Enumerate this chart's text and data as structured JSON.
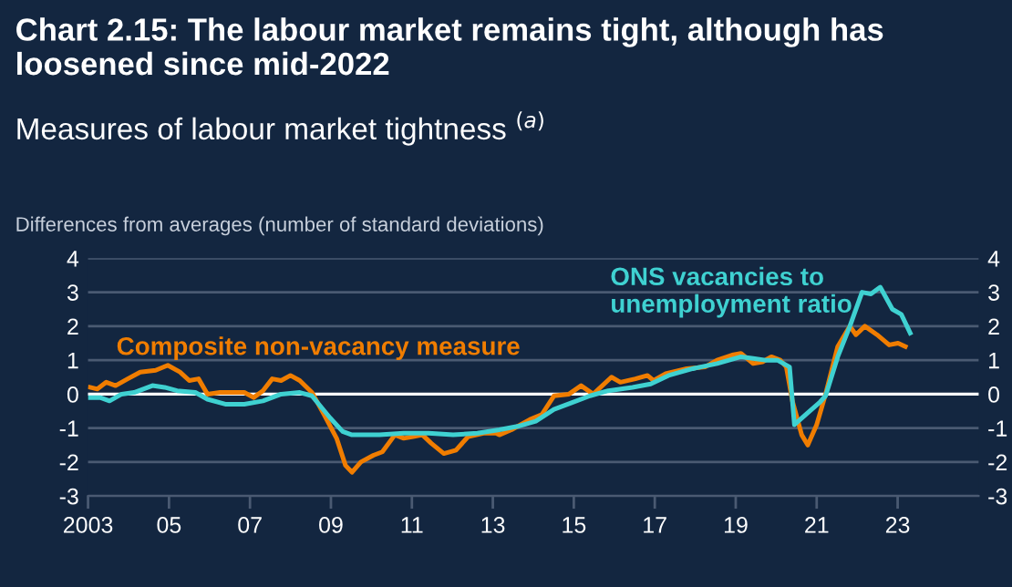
{
  "chart_data": {
    "type": "line",
    "title": "Chart 2.15: The labour market remains tight, although has loosened since mid-2022",
    "subtitle": "Measures of labour market tightness $^{(a)}$",
    "ylabel": "Differences from averages (number of standard deviations)",
    "xlim": [
      2003,
      2025
    ],
    "xticks": [
      2003,
      {
        "value": 2005,
        "label": "05"
      },
      {
        "value": 2007,
        "label": "07"
      },
      {
        "value": 2009,
        "label": "09"
      },
      {
        "value": 2011,
        "label": "11"
      },
      {
        "value": 2013,
        "label": "13"
      },
      {
        "value": 2015,
        "label": "15"
      },
      {
        "value": 2017,
        "label": "17"
      },
      {
        "value": 2019,
        "label": "19"
      },
      {
        "value": 2021,
        "label": "21"
      },
      {
        "value": 2023,
        "label": "23"
      }
    ],
    "ylim": [
      -3,
      4
    ],
    "yticks": [
      -3,
      -2,
      -1,
      0,
      1,
      2,
      3,
      4
    ],
    "y2lim": [
      -3,
      4
    ],
    "y2ticks": [
      -3,
      -2,
      -1,
      0,
      1,
      2,
      3,
      4
    ],
    "grid": "y",
    "legend": false,
    "ref_lines": [
      {
        "axis": "y",
        "value": 0,
        "color": "#ffffff"
      }
    ],
    "series": [
      {
        "name": "Composite non-vacancy measure",
        "color": "#f07d00",
        "x": [
          2003.05,
          2003.23,
          2003.45,
          2003.68,
          2003.98,
          2004.29,
          2004.67,
          2004.97,
          2005.27,
          2005.5,
          2005.73,
          2005.95,
          2006.26,
          2006.86,
          2007.09,
          2007.32,
          2007.55,
          2007.77,
          2008.0,
          2008.23,
          2008.53,
          2008.83,
          2009.14,
          2009.36,
          2009.52,
          2009.74,
          2010.05,
          2010.27,
          2010.58,
          2010.8,
          2011.03,
          2011.26,
          2011.48,
          2011.79,
          2012.09,
          2012.39,
          2012.77,
          2013.08,
          2013.16,
          2013.46,
          2013.91,
          2014.21,
          2014.51,
          2014.88,
          2015.18,
          2015.48,
          2015.93,
          2016.15,
          2016.52,
          2016.82,
          2016.97,
          2017.27,
          2017.79,
          2018.24,
          2018.54,
          2018.91,
          2019.13,
          2019.43,
          2019.66,
          2019.88,
          2020.1,
          2020.25,
          2020.4,
          2020.63,
          2020.78,
          2021.0,
          2021.22,
          2021.52,
          2021.82,
          2021.97,
          2022.19,
          2022.49,
          2022.79,
          2023.01,
          2023.19
        ],
        "values": [
          0.2,
          0.15,
          0.35,
          0.25,
          0.45,
          0.65,
          0.7,
          0.85,
          0.65,
          0.4,
          0.45,
          0.0,
          0.05,
          0.05,
          -0.1,
          0.1,
          0.45,
          0.4,
          0.55,
          0.4,
          0.05,
          -0.6,
          -1.3,
          -2.1,
          -2.3,
          -2.0,
          -1.8,
          -1.7,
          -1.2,
          -1.3,
          -1.25,
          -1.2,
          -1.45,
          -1.75,
          -1.65,
          -1.25,
          -1.15,
          -1.15,
          -1.2,
          -1.05,
          -0.75,
          -0.6,
          -0.05,
          0.0,
          0.25,
          0.0,
          0.5,
          0.35,
          0.45,
          0.55,
          0.4,
          0.6,
          0.75,
          0.8,
          1.0,
          1.15,
          1.2,
          0.9,
          0.95,
          1.1,
          1.0,
          0.8,
          -0.2,
          -1.2,
          -1.5,
          -0.9,
          0.0,
          1.4,
          2.0,
          1.75,
          2.0,
          1.75,
          1.45,
          1.5,
          1.4
        ]
      },
      {
        "name": "ONS vacancies to unemployment ratio",
        "color": "#3fd1d1",
        "x": [
          2003.05,
          2003.3,
          2003.53,
          2003.83,
          2004.14,
          2004.59,
          2004.89,
          2005.2,
          2005.65,
          2005.95,
          2006.41,
          2006.86,
          2007.32,
          2007.77,
          2008.23,
          2008.53,
          2008.98,
          2009.29,
          2009.52,
          2010.2,
          2010.8,
          2011.41,
          2012.02,
          2012.62,
          2013.16,
          2013.61,
          2014.06,
          2014.51,
          2014.96,
          2015.4,
          2015.85,
          2016.45,
          2016.9,
          2017.34,
          2017.94,
          2018.54,
          2019.13,
          2019.43,
          2019.73,
          2020.03,
          2020.33,
          2020.45,
          2020.78,
          2021.07,
          2021.22,
          2021.52,
          2021.82,
          2022.12,
          2022.34,
          2022.57,
          2022.87,
          2023.09,
          2023.31
        ],
        "values": [
          -0.1,
          -0.1,
          -0.2,
          0.0,
          0.05,
          0.25,
          0.2,
          0.1,
          0.05,
          -0.15,
          -0.3,
          -0.3,
          -0.2,
          0.0,
          0.05,
          -0.05,
          -0.7,
          -1.1,
          -1.2,
          -1.2,
          -1.15,
          -1.15,
          -1.2,
          -1.15,
          -1.05,
          -0.95,
          -0.8,
          -0.45,
          -0.25,
          -0.05,
          0.1,
          0.2,
          0.3,
          0.55,
          0.75,
          0.9,
          1.1,
          1.05,
          1.0,
          1.0,
          0.8,
          -0.9,
          -0.55,
          -0.25,
          -0.05,
          1.1,
          2.0,
          3.0,
          2.95,
          3.15,
          2.5,
          2.35,
          1.8
        ]
      }
    ]
  }
}
